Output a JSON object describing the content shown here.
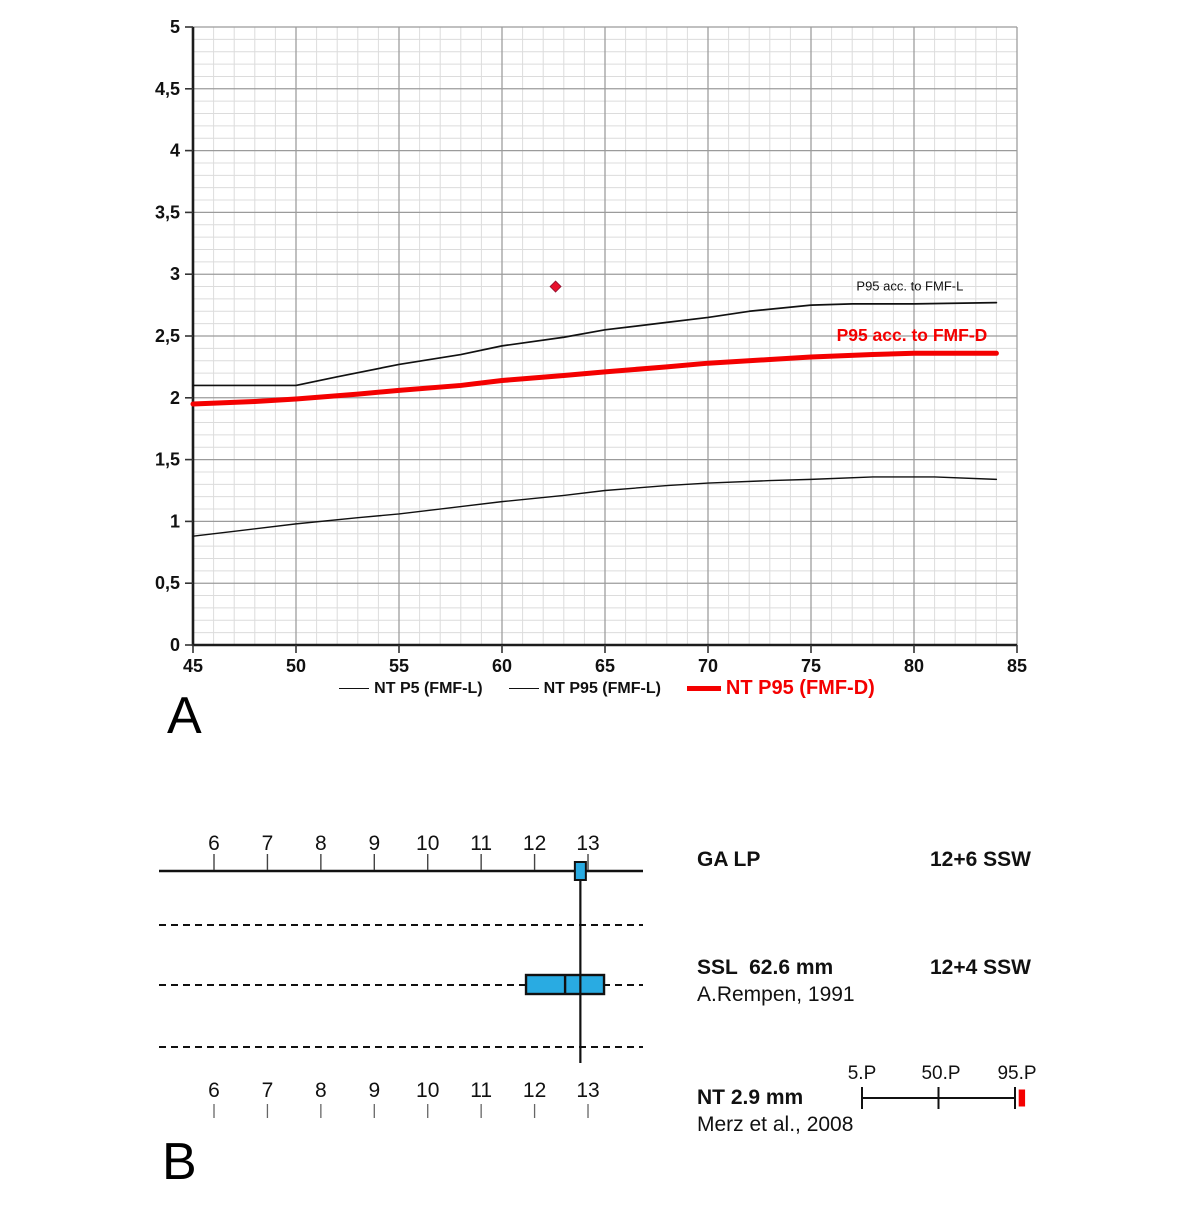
{
  "colors": {
    "red": "#f40000",
    "blue": "#29abe2",
    "ink": "#111111",
    "grid_minor": "#dcdcdc",
    "grid_major": "#9b9b9b",
    "axis": "#1c1c1c"
  },
  "panel_a": {
    "label": "A",
    "chart_data": {
      "type": "line",
      "title": "",
      "xlabel": "",
      "ylabel": "",
      "xlim": [
        45,
        85
      ],
      "ylim": [
        0,
        5
      ],
      "x_tick_labels": [
        "45",
        "50",
        "55",
        "60",
        "65",
        "70",
        "75",
        "80",
        "85"
      ],
      "y_tick_labels": [
        "0",
        "0,5",
        "1",
        "1,5",
        "2",
        "2,5",
        "3",
        "3,5",
        "4",
        "4,5",
        "5"
      ],
      "x_minor_step": 1,
      "y_minor_step": 0.1,
      "grid": true,
      "legend_position": "bottom",
      "series": [
        {
          "name": "NT P5 (FMF-L)",
          "color": "#111111",
          "width": 1.4,
          "points": [
            [
              45,
              0.88
            ],
            [
              47,
              0.92
            ],
            [
              50,
              0.98
            ],
            [
              53,
              1.03
            ],
            [
              55,
              1.06
            ],
            [
              58,
              1.12
            ],
            [
              60,
              1.16
            ],
            [
              63,
              1.21
            ],
            [
              65,
              1.25
            ],
            [
              68,
              1.29
            ],
            [
              70,
              1.31
            ],
            [
              73,
              1.33
            ],
            [
              75,
              1.34
            ],
            [
              78,
              1.36
            ],
            [
              81,
              1.36
            ],
            [
              84,
              1.34
            ]
          ]
        },
        {
          "name": "NT P95 (FMF-L)",
          "color": "#111111",
          "width": 1.7,
          "points": [
            [
              45,
              2.1
            ],
            [
              50,
              2.1
            ],
            [
              52,
              2.17
            ],
            [
              55,
              2.27
            ],
            [
              58,
              2.35
            ],
            [
              60,
              2.42
            ],
            [
              63,
              2.49
            ],
            [
              65,
              2.55
            ],
            [
              68,
              2.61
            ],
            [
              70,
              2.65
            ],
            [
              72,
              2.7
            ],
            [
              75,
              2.75
            ],
            [
              77,
              2.76
            ],
            [
              80,
              2.76
            ],
            [
              84,
              2.77
            ]
          ]
        },
        {
          "name": "NT P95 (FMF-D)",
          "color": "#f40000",
          "width": 5,
          "points": [
            [
              45,
              1.95
            ],
            [
              48,
              1.97
            ],
            [
              50,
              1.99
            ],
            [
              53,
              2.03
            ],
            [
              55,
              2.06
            ],
            [
              58,
              2.1
            ],
            [
              60,
              2.14
            ],
            [
              63,
              2.18
            ],
            [
              65,
              2.21
            ],
            [
              68,
              2.25
            ],
            [
              70,
              2.28
            ],
            [
              73,
              2.31
            ],
            [
              75,
              2.33
            ],
            [
              78,
              2.35
            ],
            [
              80,
              2.36
            ],
            [
              84,
              2.36
            ]
          ]
        }
      ],
      "point_marker": {
        "x": 62.6,
        "y": 2.9,
        "shape": "diamond",
        "color": "#e8112d"
      },
      "annotations": [
        {
          "text": "P95 acc. to FMF-L",
          "x": 79.8,
          "y": 2.87,
          "color": "#111111",
          "bold": false,
          "size": 13
        },
        {
          "text": "P95 acc. to FMF-D",
          "x": 79.9,
          "y": 2.46,
          "color": "#f40000",
          "bold": true,
          "size": 17.5
        }
      ]
    }
  },
  "panel_b": {
    "label": "B",
    "chart_data": {
      "type": "ruler-diagram",
      "week_ticks": [
        "6",
        "7",
        "8",
        "9",
        "10",
        "11",
        "12",
        "13"
      ],
      "week_range": [
        6,
        13
      ],
      "ga_lp_marker_weeks": 12.857,
      "ssl_box_weeks": {
        "low": 11.84,
        "median": 12.571,
        "high": 13.3
      },
      "percentile_scale": {
        "labels": [
          "5.P",
          "50.P",
          "95.P"
        ],
        "marker_frac": 1.045
      }
    },
    "rows": {
      "ga": {
        "label": "GA LP",
        "value": "12+6 SSW"
      },
      "ssl": {
        "label": "SSL  62.6 mm",
        "source": "A.Rempen, 1991",
        "value": "12+4 SSW"
      },
      "nt": {
        "label": "NT 2.9 mm",
        "source": "Merz et al., 2008"
      }
    }
  }
}
